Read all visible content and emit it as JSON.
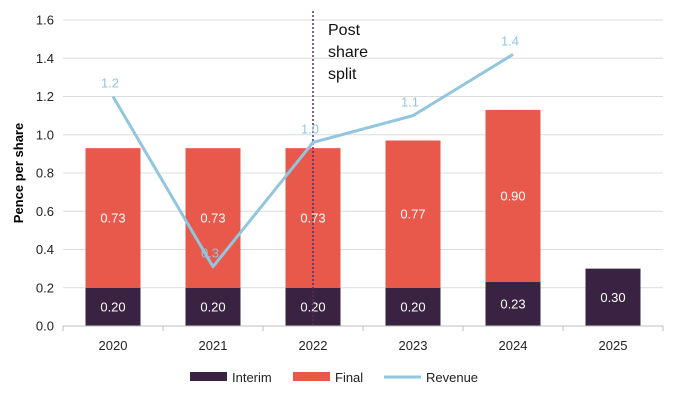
{
  "chart_data": {
    "type": "bar",
    "stacked": true,
    "categories": [
      "2020",
      "2021",
      "2022",
      "2023",
      "2024",
      "2025"
    ],
    "series": [
      {
        "name": "Interim",
        "kind": "bar",
        "color": "#3a2342",
        "values": [
          0.2,
          0.2,
          0.2,
          0.2,
          0.23,
          0.3
        ],
        "labels": [
          "0.20",
          "0.20",
          "0.20",
          "0.20",
          "0.23",
          "0.30"
        ]
      },
      {
        "name": "Final",
        "kind": "bar",
        "color": "#e8594b",
        "values": [
          0.73,
          0.73,
          0.73,
          0.77,
          0.9,
          null
        ],
        "labels": [
          "0.73",
          "0.73",
          "0.73",
          "0.77",
          "0.90",
          null
        ]
      },
      {
        "name": "Revenue",
        "kind": "line",
        "color": "#92c5de",
        "values": [
          1.2,
          0.31,
          0.96,
          1.1,
          1.42,
          null
        ],
        "labels": [
          "1.2",
          "0.3",
          "1.0",
          "1.1",
          "1.4",
          null
        ]
      }
    ],
    "ylabel": "Pence per share",
    "xlabel": "",
    "ylim": [
      0,
      1.6
    ],
    "yticks": [
      "0.0",
      "0.2",
      "0.4",
      "0.6",
      "0.8",
      "1.0",
      "1.2",
      "1.4",
      "1.6"
    ],
    "ytick_values": [
      0,
      0.2,
      0.4,
      0.6,
      0.8,
      1.0,
      1.2,
      1.4,
      1.6
    ],
    "grid": true,
    "divider_x": 2.5,
    "annotation": [
      "Post",
      "share",
      "split"
    ],
    "legend_position": "bottom-center"
  }
}
